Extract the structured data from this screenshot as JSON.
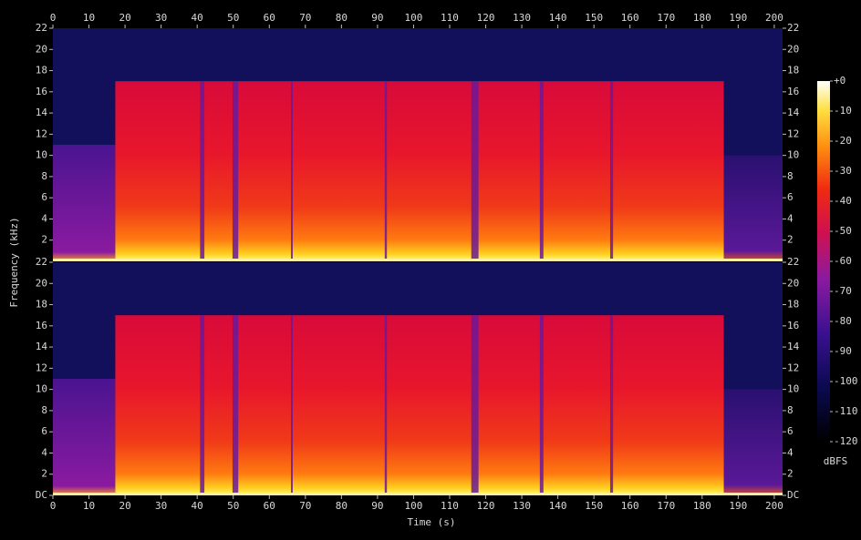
{
  "chart_data": {
    "type": "spectrogram",
    "x_label": "Time (s)",
    "y_label": "Frequency (kHz)",
    "xlim": [
      0,
      202.3
    ],
    "xticks": [
      0,
      10,
      20,
      30,
      40,
      50,
      60,
      70,
      80,
      90,
      100,
      110,
      120,
      130,
      140,
      150,
      160,
      170,
      180,
      190,
      200
    ],
    "ylim": [
      0,
      22
    ],
    "channels": [
      {
        "yticks": [
          2,
          4,
          6,
          8,
          10,
          12,
          14,
          16,
          18,
          20,
          22
        ]
      },
      {
        "yticks": [
          {
            "value": 0,
            "label": "DC"
          },
          2,
          4,
          6,
          8,
          10,
          12,
          14,
          16,
          18,
          20,
          22
        ]
      }
    ],
    "colorbar": {
      "label": "dBFS",
      "lim": [
        -120,
        0
      ],
      "ticks": [
        {
          "value": 0,
          "label": "+0"
        },
        -10,
        -20,
        -30,
        -40,
        -50,
        -60,
        -70,
        -80,
        -90,
        -100,
        -110,
        -120
      ]
    }
  }
}
